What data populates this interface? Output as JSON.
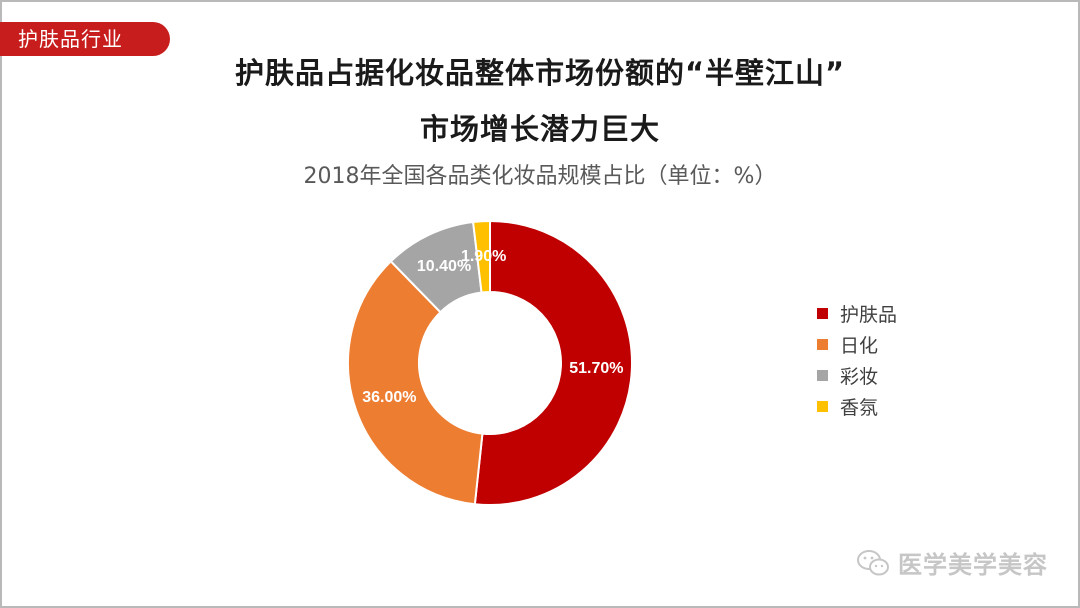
{
  "tag": "护肤品行业",
  "title_line1": "护肤品占据化妆品整体市场份额的“半壁江山”",
  "title_line2": "市场增长潜力巨大",
  "watermark": "医学美学美容",
  "chart_data": {
    "type": "pie",
    "subtitle": "2018年全国各品类化妆品规模占比（单位：%）",
    "donut": true,
    "legend_position": "right",
    "slices": [
      {
        "name": "护肤品",
        "value": 51.7,
        "label": "51.70%",
        "color": "#c00000"
      },
      {
        "name": "日化",
        "value": 36.0,
        "label": "36.00%",
        "color": "#ed7d31"
      },
      {
        "name": "彩妆",
        "value": 10.4,
        "label": "10.40%",
        "color": "#a5a5a5"
      },
      {
        "name": "香氛",
        "value": 1.9,
        "label": "1.90%",
        "color": "#ffc000"
      }
    ]
  }
}
